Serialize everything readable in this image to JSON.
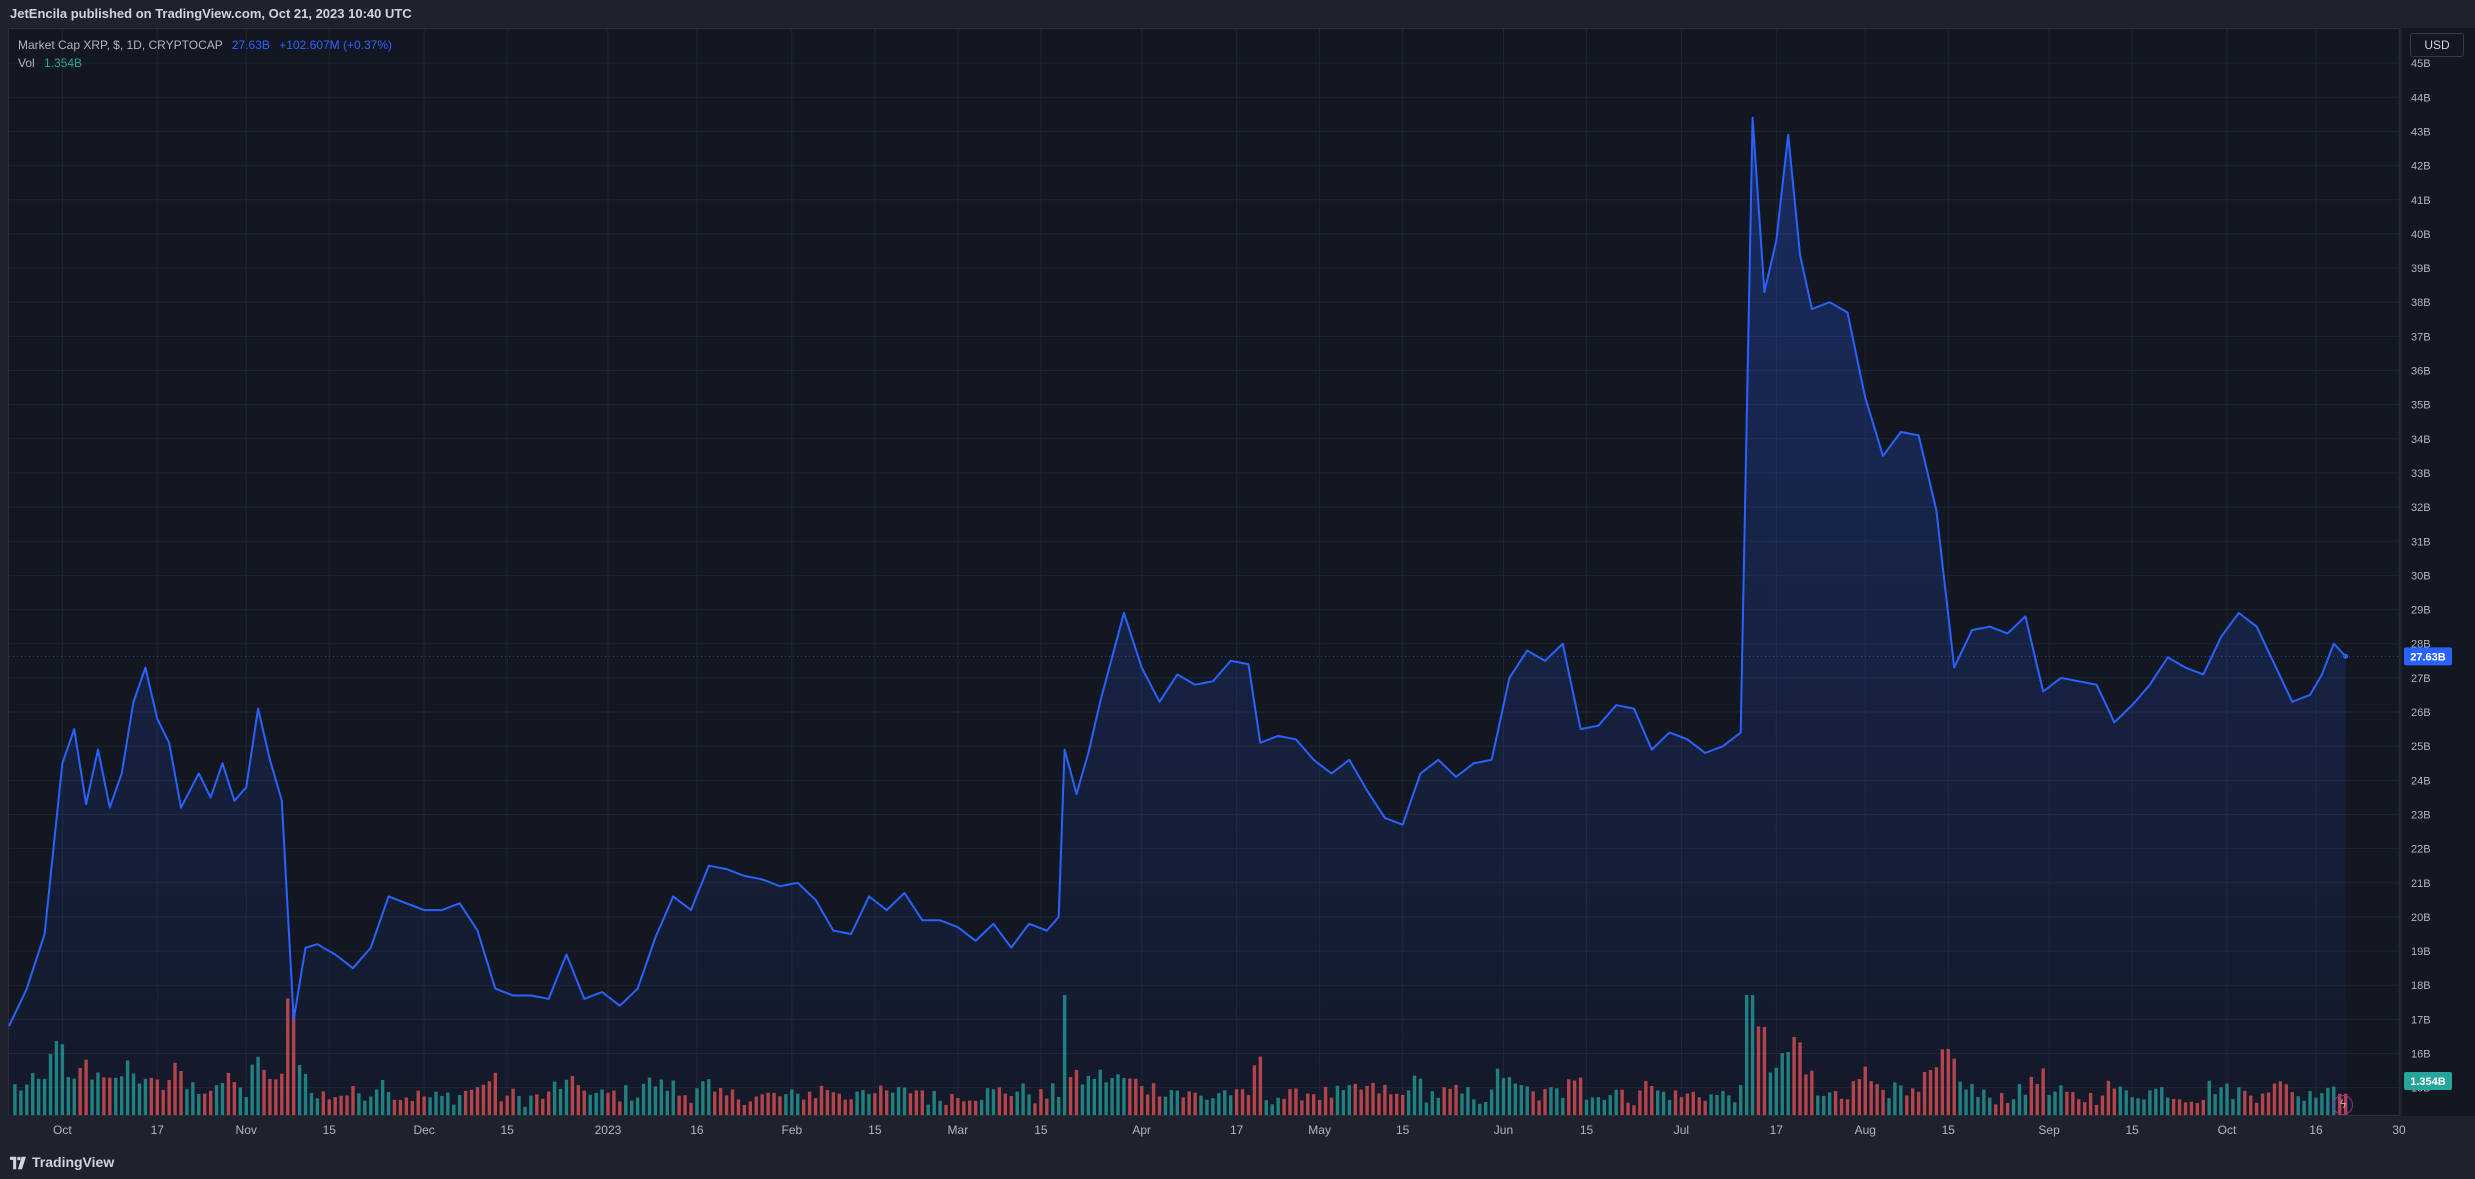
{
  "header": {
    "published_text": "JetEncila published on TradingView.com, Oct 21, 2023 10:40 UTC"
  },
  "legend": {
    "symbol": "Market Cap XRP, $, 1D, CRYPTOCAP",
    "last_value": "27.63B",
    "change": "+102.607M (+0.37%)",
    "volume_label": "Vol",
    "volume_value": "1.354B"
  },
  "axis": {
    "currency": "USD"
  },
  "footer": {
    "brand": "TradingView"
  },
  "colors": {
    "line": "#2962ff",
    "up": "#26a69a",
    "down": "#ef5350",
    "last_price_bg": "#2962ff",
    "volume_bg": "#26a69a"
  },
  "icons": [
    "tradingview-logo-icon",
    "lightning-icon"
  ],
  "chart_data": {
    "type": "area",
    "title": "Market Cap XRP, $, 1D, CRYPTOCAP",
    "y_unit": "B USD",
    "ylim": [
      14.2,
      46
    ],
    "y_ticks": [
      15,
      16,
      17,
      18,
      19,
      20,
      21,
      22,
      23,
      24,
      25,
      26,
      27,
      28,
      29,
      30,
      31,
      32,
      33,
      34,
      35,
      36,
      37,
      38,
      39,
      40,
      41,
      42,
      43,
      44,
      45
    ],
    "y_tick_labels": [
      "15B",
      "16B",
      "17B",
      "18B",
      "19B",
      "20B",
      "21B",
      "22B",
      "23B",
      "24B",
      "25B",
      "26B",
      "27B",
      "28B",
      "29B",
      "30B",
      "31B",
      "32B",
      "33B",
      "34B",
      "35B",
      "36B",
      "37B",
      "38B",
      "39B",
      "40B",
      "41B",
      "42B",
      "43B",
      "44B",
      "45B"
    ],
    "x_range": [
      "2022-09-22",
      "2023-10-30"
    ],
    "x_ticks": [
      {
        "date": "2022-10-01",
        "label": "Oct"
      },
      {
        "date": "2022-10-17",
        "label": "17"
      },
      {
        "date": "2022-11-01",
        "label": "Nov"
      },
      {
        "date": "2022-11-15",
        "label": "15"
      },
      {
        "date": "2022-12-01",
        "label": "Dec"
      },
      {
        "date": "2022-12-15",
        "label": "15"
      },
      {
        "date": "2023-01-01",
        "label": "2023"
      },
      {
        "date": "2023-01-16",
        "label": "16"
      },
      {
        "date": "2023-02-01",
        "label": "Feb"
      },
      {
        "date": "2023-02-15",
        "label": "15"
      },
      {
        "date": "2023-03-01",
        "label": "Mar"
      },
      {
        "date": "2023-03-15",
        "label": "15"
      },
      {
        "date": "2023-04-01",
        "label": "Apr"
      },
      {
        "date": "2023-04-17",
        "label": "17"
      },
      {
        "date": "2023-05-01",
        "label": "May"
      },
      {
        "date": "2023-05-15",
        "label": "15"
      },
      {
        "date": "2023-06-01",
        "label": "Jun"
      },
      {
        "date": "2023-06-15",
        "label": "15"
      },
      {
        "date": "2023-07-01",
        "label": "Jul"
      },
      {
        "date": "2023-07-17",
        "label": "17"
      },
      {
        "date": "2023-08-01",
        "label": "Aug"
      },
      {
        "date": "2023-08-15",
        "label": "15"
      },
      {
        "date": "2023-09-01",
        "label": "Sep"
      },
      {
        "date": "2023-09-15",
        "label": "15"
      },
      {
        "date": "2023-10-01",
        "label": "Oct"
      },
      {
        "date": "2023-10-16",
        "label": "16"
      },
      {
        "date": "2023-10-30",
        "label": "30"
      }
    ],
    "last_price": 27.63,
    "last_price_label": "27.63B",
    "volume_label": "1.354B",
    "series": [
      {
        "name": "Market Cap XRP",
        "points": [
          [
            "2022-09-22",
            16.8
          ],
          [
            "2022-09-25",
            17.9
          ],
          [
            "2022-09-28",
            19.5
          ],
          [
            "2022-10-01",
            24.5
          ],
          [
            "2022-10-03",
            25.5
          ],
          [
            "2022-10-05",
            23.3
          ],
          [
            "2022-10-07",
            24.9
          ],
          [
            "2022-10-09",
            23.2
          ],
          [
            "2022-10-11",
            24.2
          ],
          [
            "2022-10-13",
            26.3
          ],
          [
            "2022-10-15",
            27.3
          ],
          [
            "2022-10-17",
            25.8
          ],
          [
            "2022-10-19",
            25.1
          ],
          [
            "2022-10-21",
            23.2
          ],
          [
            "2022-10-24",
            24.2
          ],
          [
            "2022-10-26",
            23.5
          ],
          [
            "2022-10-28",
            24.5
          ],
          [
            "2022-10-30",
            23.4
          ],
          [
            "2022-11-01",
            23.8
          ],
          [
            "2022-11-03",
            26.1
          ],
          [
            "2022-11-05",
            24.6
          ],
          [
            "2022-11-07",
            23.4
          ],
          [
            "2022-11-09",
            17.0
          ],
          [
            "2022-11-11",
            19.1
          ],
          [
            "2022-11-13",
            19.2
          ],
          [
            "2022-11-16",
            18.9
          ],
          [
            "2022-11-19",
            18.5
          ],
          [
            "2022-11-22",
            19.1
          ],
          [
            "2022-11-25",
            20.6
          ],
          [
            "2022-11-28",
            20.4
          ],
          [
            "2022-12-01",
            20.2
          ],
          [
            "2022-12-04",
            20.2
          ],
          [
            "2022-12-07",
            20.4
          ],
          [
            "2022-12-10",
            19.6
          ],
          [
            "2022-12-13",
            17.9
          ],
          [
            "2022-12-16",
            17.7
          ],
          [
            "2022-12-19",
            17.7
          ],
          [
            "2022-12-22",
            17.6
          ],
          [
            "2022-12-25",
            18.9
          ],
          [
            "2022-12-28",
            17.6
          ],
          [
            "2022-12-31",
            17.8
          ],
          [
            "2023-01-03",
            17.4
          ],
          [
            "2023-01-06",
            17.9
          ],
          [
            "2023-01-09",
            19.4
          ],
          [
            "2023-01-12",
            20.6
          ],
          [
            "2023-01-15",
            20.2
          ],
          [
            "2023-01-18",
            21.5
          ],
          [
            "2023-01-21",
            21.4
          ],
          [
            "2023-01-24",
            21.2
          ],
          [
            "2023-01-27",
            21.1
          ],
          [
            "2023-01-30",
            20.9
          ],
          [
            "2023-02-02",
            21.0
          ],
          [
            "2023-02-05",
            20.5
          ],
          [
            "2023-02-08",
            19.6
          ],
          [
            "2023-02-11",
            19.5
          ],
          [
            "2023-02-14",
            20.6
          ],
          [
            "2023-02-17",
            20.2
          ],
          [
            "2023-02-20",
            20.7
          ],
          [
            "2023-02-23",
            19.9
          ],
          [
            "2023-02-26",
            19.9
          ],
          [
            "2023-03-01",
            19.7
          ],
          [
            "2023-03-04",
            19.3
          ],
          [
            "2023-03-07",
            19.8
          ],
          [
            "2023-03-10",
            19.1
          ],
          [
            "2023-03-13",
            19.8
          ],
          [
            "2023-03-16",
            19.6
          ],
          [
            "2023-03-18",
            20.0
          ],
          [
            "2023-03-19",
            24.9
          ],
          [
            "2023-03-21",
            23.6
          ],
          [
            "2023-03-23",
            24.8
          ],
          [
            "2023-03-25",
            26.3
          ],
          [
            "2023-03-29",
            28.9
          ],
          [
            "2023-04-01",
            27.3
          ],
          [
            "2023-04-04",
            26.3
          ],
          [
            "2023-04-07",
            27.1
          ],
          [
            "2023-04-10",
            26.8
          ],
          [
            "2023-04-13",
            26.9
          ],
          [
            "2023-04-16",
            27.5
          ],
          [
            "2023-04-19",
            27.4
          ],
          [
            "2023-04-21",
            25.1
          ],
          [
            "2023-04-24",
            25.3
          ],
          [
            "2023-04-27",
            25.2
          ],
          [
            "2023-04-30",
            24.6
          ],
          [
            "2023-05-03",
            24.2
          ],
          [
            "2023-05-06",
            24.6
          ],
          [
            "2023-05-09",
            23.7
          ],
          [
            "2023-05-12",
            22.9
          ],
          [
            "2023-05-15",
            22.7
          ],
          [
            "2023-05-18",
            24.2
          ],
          [
            "2023-05-21",
            24.6
          ],
          [
            "2023-05-24",
            24.1
          ],
          [
            "2023-05-27",
            24.5
          ],
          [
            "2023-05-30",
            24.6
          ],
          [
            "2023-06-02",
            27.0
          ],
          [
            "2023-06-05",
            27.8
          ],
          [
            "2023-06-08",
            27.5
          ],
          [
            "2023-06-11",
            28.0
          ],
          [
            "2023-06-14",
            25.5
          ],
          [
            "2023-06-17",
            25.6
          ],
          [
            "2023-06-20",
            26.2
          ],
          [
            "2023-06-23",
            26.1
          ],
          [
            "2023-06-26",
            24.9
          ],
          [
            "2023-06-29",
            25.4
          ],
          [
            "2023-07-02",
            25.2
          ],
          [
            "2023-07-05",
            24.8
          ],
          [
            "2023-07-08",
            25.0
          ],
          [
            "2023-07-11",
            25.4
          ],
          [
            "2023-07-13",
            43.4
          ],
          [
            "2023-07-15",
            38.3
          ],
          [
            "2023-07-17",
            39.8
          ],
          [
            "2023-07-19",
            42.9
          ],
          [
            "2023-07-21",
            39.4
          ],
          [
            "2023-07-23",
            37.8
          ],
          [
            "2023-07-26",
            38.0
          ],
          [
            "2023-07-29",
            37.7
          ],
          [
            "2023-08-01",
            35.2
          ],
          [
            "2023-08-04",
            33.5
          ],
          [
            "2023-08-07",
            34.2
          ],
          [
            "2023-08-10",
            34.1
          ],
          [
            "2023-08-13",
            31.9
          ],
          [
            "2023-08-16",
            27.3
          ],
          [
            "2023-08-19",
            28.4
          ],
          [
            "2023-08-22",
            28.5
          ],
          [
            "2023-08-25",
            28.3
          ],
          [
            "2023-08-28",
            28.8
          ],
          [
            "2023-08-31",
            26.6
          ],
          [
            "2023-09-03",
            27.0
          ],
          [
            "2023-09-06",
            26.9
          ],
          [
            "2023-09-09",
            26.8
          ],
          [
            "2023-09-12",
            25.7
          ],
          [
            "2023-09-15",
            26.2
          ],
          [
            "2023-09-18",
            26.8
          ],
          [
            "2023-09-21",
            27.6
          ],
          [
            "2023-09-24",
            27.3
          ],
          [
            "2023-09-27",
            27.1
          ],
          [
            "2023-09-30",
            28.2
          ],
          [
            "2023-10-03",
            28.9
          ],
          [
            "2023-10-06",
            28.5
          ],
          [
            "2023-10-09",
            27.4
          ],
          [
            "2023-10-12",
            26.3
          ],
          [
            "2023-10-15",
            26.5
          ],
          [
            "2023-10-17",
            27.1
          ],
          [
            "2023-10-19",
            28.0
          ],
          [
            "2023-10-21",
            27.63
          ]
        ]
      }
    ]
  }
}
